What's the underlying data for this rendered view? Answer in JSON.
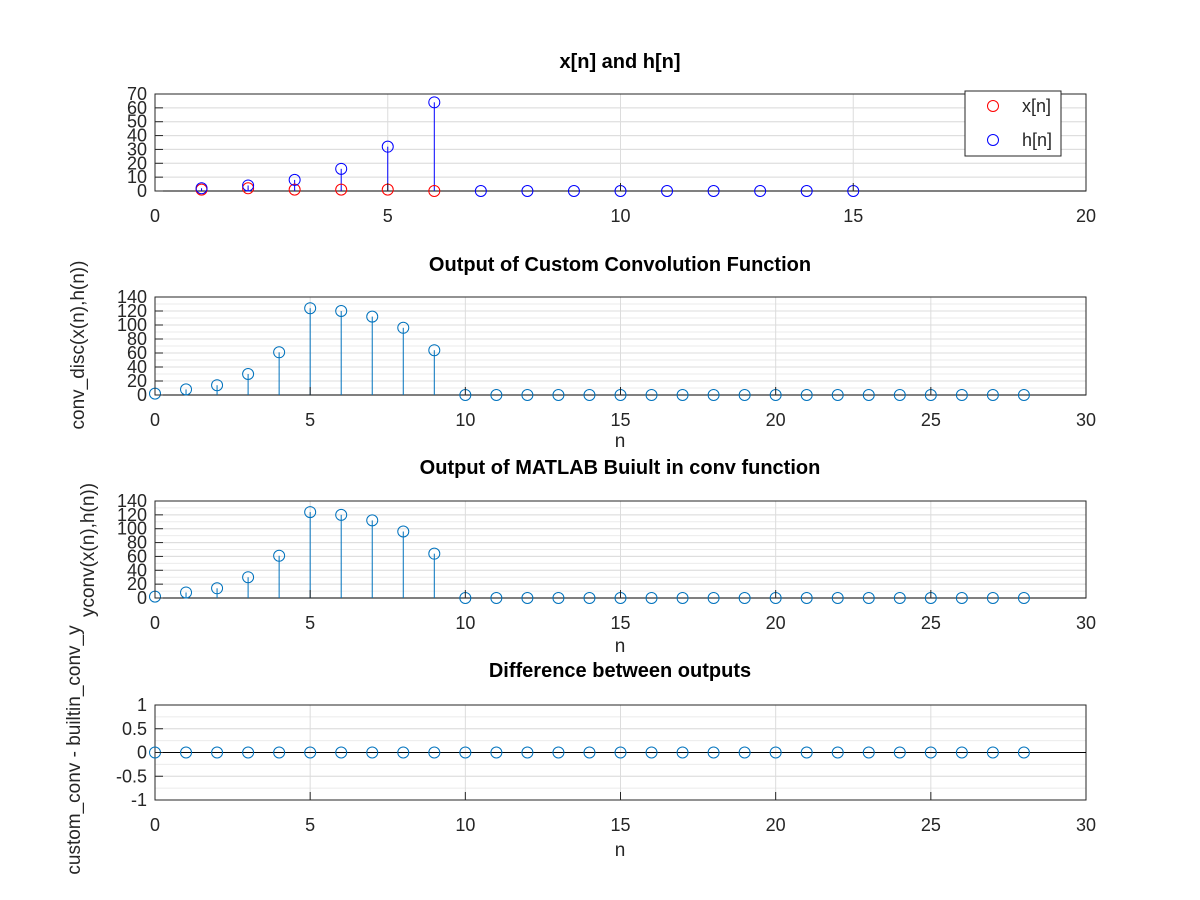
{
  "chart_data": [
    {
      "type": "stem",
      "title": "x[n] and h[n]",
      "xlabel": "",
      "ylabel": "",
      "xlim": [
        0,
        20
      ],
      "ylim": [
        0,
        70
      ],
      "xticks": [
        0,
        5,
        10,
        15,
        20
      ],
      "yticks": [
        0,
        10,
        20,
        30,
        40,
        50,
        60,
        70
      ],
      "grid": true,
      "legend": {
        "placement": "top-right",
        "entries": [
          "x[n]",
          "h[n]"
        ]
      },
      "series": [
        {
          "name": "x[n]",
          "color": "#ff0000",
          "x": [
            1,
            2,
            3,
            4,
            5,
            6
          ],
          "values": [
            1,
            2,
            1,
            1,
            1,
            0
          ]
        },
        {
          "name": "h[n]",
          "color": "#0000ff",
          "x": [
            1,
            2,
            3,
            4,
            5,
            6,
            7,
            8,
            9,
            10,
            11,
            12,
            13,
            14,
            15
          ],
          "values": [
            2,
            4,
            8,
            16,
            32,
            64,
            0,
            0,
            0,
            0,
            0,
            0,
            0,
            0,
            0
          ]
        }
      ]
    },
    {
      "type": "stem",
      "title": "Output of Custom Convolution Function",
      "xlabel": "n",
      "ylabel": "conv_disc(x(n),h(n))",
      "xlim": [
        0,
        30
      ],
      "ylim": [
        0,
        140
      ],
      "xticks": [
        0,
        5,
        10,
        15,
        20,
        25,
        30
      ],
      "yticks": [
        0,
        20,
        40,
        60,
        80,
        100,
        120,
        140
      ],
      "grid": true,
      "series": [
        {
          "color": "#0072bd",
          "x": [
            0,
            1,
            2,
            3,
            4,
            5,
            6,
            7,
            8,
            9,
            10,
            11,
            12,
            13,
            14,
            15,
            16,
            17,
            18,
            19,
            20,
            21,
            22,
            23,
            24,
            25,
            26,
            27,
            28
          ],
          "values": [
            2,
            8,
            14,
            30,
            61,
            124,
            120,
            112,
            96,
            64,
            0,
            0,
            0,
            0,
            0,
            0,
            0,
            0,
            0,
            0,
            0,
            0,
            0,
            0,
            0,
            0,
            0,
            0,
            0
          ]
        }
      ]
    },
    {
      "type": "stem",
      "title": "Output of MATLAB Buiult in conv function",
      "xlabel": "n",
      "ylabel": "yconv(x(n),h(n))",
      "xlim": [
        0,
        30
      ],
      "ylim": [
        0,
        140
      ],
      "xticks": [
        0,
        5,
        10,
        15,
        20,
        25,
        30
      ],
      "yticks": [
        0,
        20,
        40,
        60,
        80,
        100,
        120,
        140
      ],
      "grid": true,
      "series": [
        {
          "color": "#0072bd",
          "x": [
            0,
            1,
            2,
            3,
            4,
            5,
            6,
            7,
            8,
            9,
            10,
            11,
            12,
            13,
            14,
            15,
            16,
            17,
            18,
            19,
            20,
            21,
            22,
            23,
            24,
            25,
            26,
            27,
            28
          ],
          "values": [
            2,
            8,
            14,
            30,
            61,
            124,
            120,
            112,
            96,
            64,
            0,
            0,
            0,
            0,
            0,
            0,
            0,
            0,
            0,
            0,
            0,
            0,
            0,
            0,
            0,
            0,
            0,
            0,
            0
          ]
        }
      ]
    },
    {
      "type": "stem",
      "title": "Difference between outputs",
      "xlabel": "n",
      "ylabel": "custom_conv - builtin_conv_y",
      "xlim": [
        0,
        30
      ],
      "ylim": [
        -1,
        1
      ],
      "xticks": [
        0,
        5,
        10,
        15,
        20,
        25,
        30
      ],
      "yticks": [
        -1,
        -0.5,
        0,
        0.5,
        1
      ],
      "grid": true,
      "series": [
        {
          "color": "#0072bd",
          "x": [
            0,
            1,
            2,
            3,
            4,
            5,
            6,
            7,
            8,
            9,
            10,
            11,
            12,
            13,
            14,
            15,
            16,
            17,
            18,
            19,
            20,
            21,
            22,
            23,
            24,
            25,
            26,
            27,
            28
          ],
          "values": [
            0,
            0,
            0,
            0,
            0,
            0,
            0,
            0,
            0,
            0,
            0,
            0,
            0,
            0,
            0,
            0,
            0,
            0,
            0,
            0,
            0,
            0,
            0,
            0,
            0,
            0,
            0,
            0,
            0
          ]
        }
      ]
    }
  ]
}
